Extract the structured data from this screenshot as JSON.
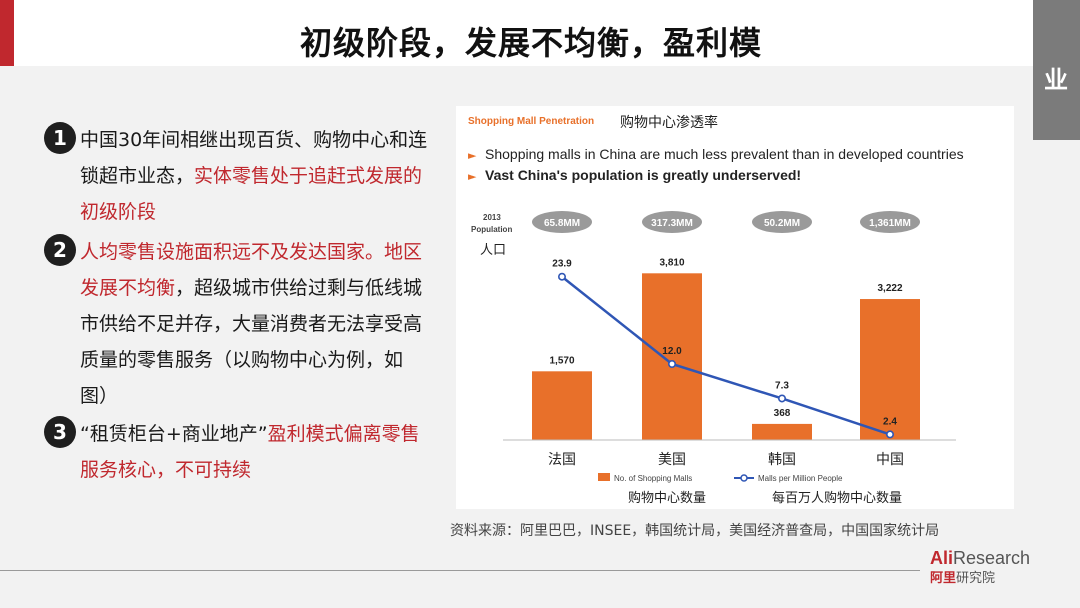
{
  "header": {
    "title": "初级阶段，发展不均衡，盈利模",
    "tab_text": "业"
  },
  "bullets": [
    {
      "number": "1",
      "text_plain": "中国30年间相继出现百货、购物中心和连锁超市业态，",
      "text_red": "实体零售处于追赶式发展的初级阶段"
    },
    {
      "number": "2",
      "text_red": "人均零售设施面积远不及发达国家。地区发展不均衡",
      "text_plain": "，超级城市供给过剩与低线城市供给不足并存，大量消费者无法享受高质量的零售服务（以购物中心为例，如图）"
    },
    {
      "number": "3",
      "text_plain": "“租赁柜台+商业地产”",
      "text_red": "盈利模式偏离零售服务核心，不可持续"
    }
  ],
  "chart_data": {
    "type": "bar",
    "title": "Shopping Mall Penetration",
    "subtitle": "购物中心渗透率",
    "notes": [
      "Shopping malls in China are much less prevalent than in developed countries",
      "Vast China's population is greatly underserved!"
    ],
    "population_label": "2013 Population",
    "population_label_cn": "人口",
    "categories": [
      "法国",
      "美国",
      "韩国",
      "中国"
    ],
    "population": [
      "65.8MM",
      "317.3MM",
      "50.2MM",
      "1,361MM"
    ],
    "series": [
      {
        "name": "No. of Shopping Malls",
        "name_cn": "购物中心数量",
        "type": "bar",
        "values": [
          1570,
          3810,
          368,
          3222
        ],
        "labels": [
          "1,570",
          "3,810",
          "368",
          "3,222"
        ],
        "color": "#e8702a"
      },
      {
        "name": "Malls per Million People",
        "name_cn": "每百万人购物中心数量",
        "type": "line",
        "values": [
          23.9,
          12.0,
          7.3,
          2.4
        ],
        "labels": [
          "23.9",
          "12.0",
          "7.3",
          "2.4"
        ],
        "color": "#2f56b5"
      }
    ]
  },
  "source": "资料来源：阿里巴巴，INSEE，韩国统计局，美国经济普查局，中国国家统计局",
  "logo": {
    "red": "Ali",
    "grey": "Research",
    "cn_red": "阿里",
    "cn_grey": "研究院"
  }
}
